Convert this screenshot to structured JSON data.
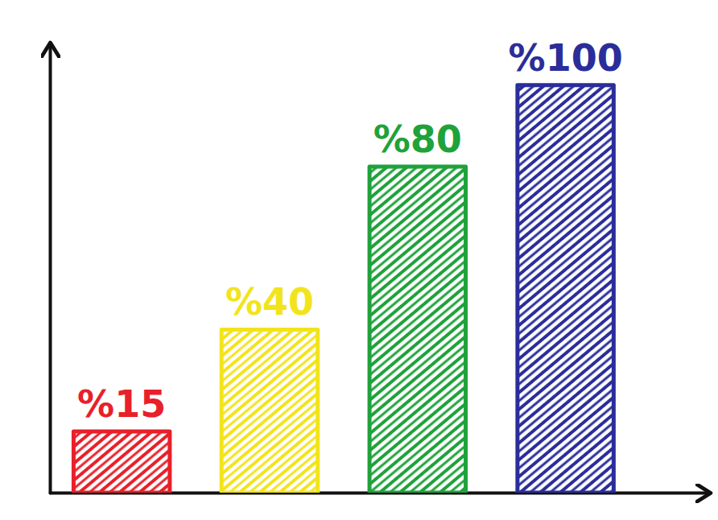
{
  "chart_data": {
    "type": "bar",
    "categories": [
      null,
      null,
      null,
      null
    ],
    "values": [
      15,
      40,
      80,
      100
    ],
    "value_labels": [
      "%15",
      "%40",
      "%80",
      "%100"
    ],
    "colors": [
      "#e8202a",
      "#f2e41c",
      "#1fa23a",
      "#2b2d9a"
    ],
    "ylim": [
      0,
      110
    ],
    "yticks": [],
    "data_labels": true,
    "tick_labels": false,
    "grid": false
  }
}
